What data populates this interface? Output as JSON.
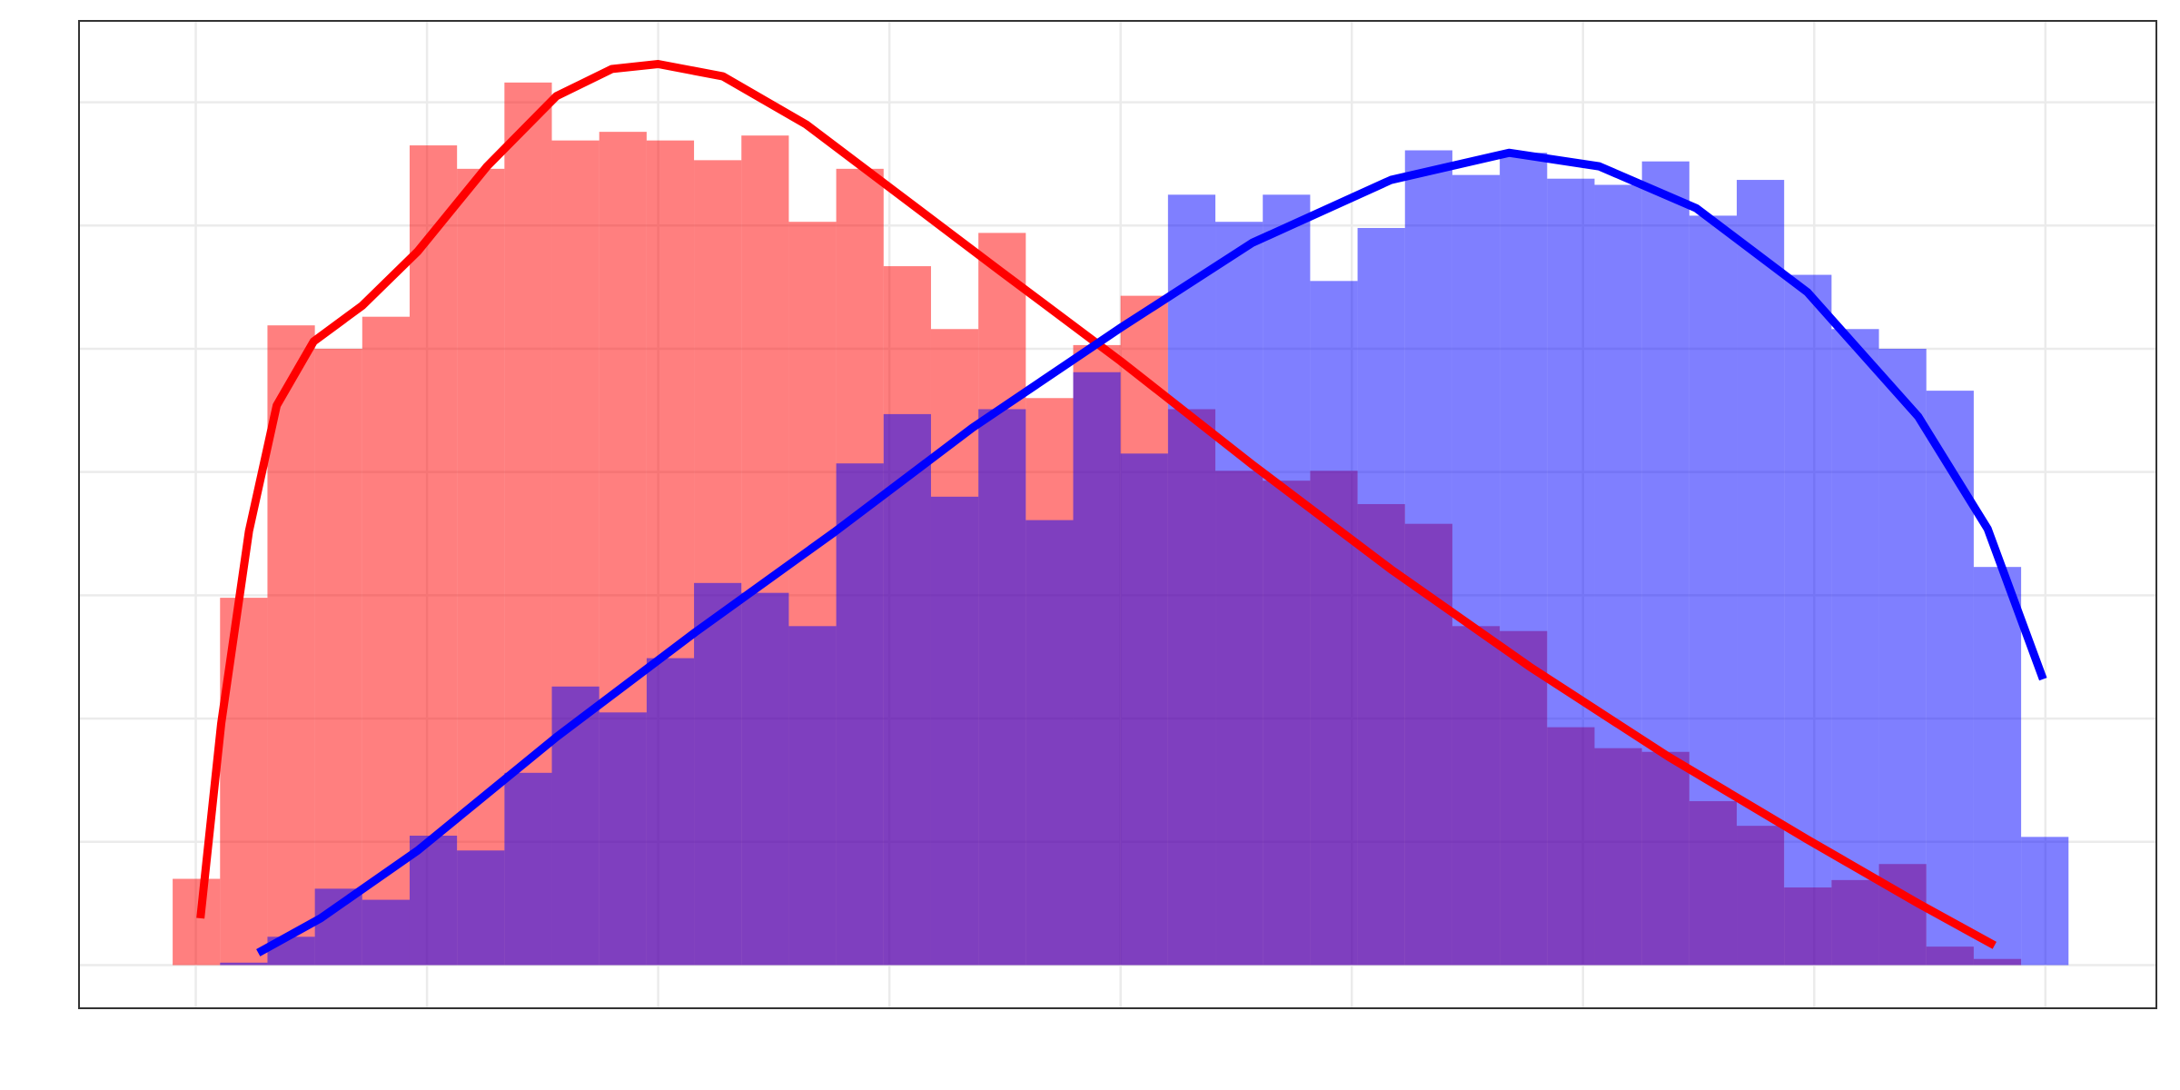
{
  "chart_data": {
    "type": "histogram",
    "bins": [
      -0.1,
      0.105,
      0.31,
      0.515,
      0.72,
      0.925,
      1.13,
      1.335,
      1.54,
      1.745,
      1.95,
      2.155,
      2.36,
      2.565,
      2.77,
      2.975,
      3.18,
      3.385,
      3.59,
      3.795,
      4.0,
      4.205,
      4.41,
      4.615,
      4.82,
      5.025,
      5.23,
      5.435,
      5.64,
      5.845,
      6.05,
      6.255,
      6.46,
      6.665,
      6.87,
      7.075,
      7.28,
      7.485,
      7.69,
      7.895,
      8.1
    ],
    "series": [
      {
        "color": "rgba(255,0,0,0.5)",
        "values": [
          0.7,
          2.98,
          5.19,
          5.0,
          5.26,
          6.65,
          6.46,
          7.16,
          6.69,
          6.76,
          6.69,
          6.53,
          6.73,
          6.03,
          6.46,
          5.67,
          5.16,
          5.94,
          4.6,
          5.03,
          5.43,
          4.51,
          4.01,
          3.93,
          4.01,
          3.74,
          3.58,
          2.75,
          2.71,
          1.93,
          1.76,
          1.73,
          1.33,
          1.13,
          0.63,
          0.69,
          0.82,
          0.15,
          0.05,
          0
        ]
      },
      {
        "color": "rgba(0,0,255,0.5)",
        "values": [
          0,
          0.02,
          0.23,
          0.62,
          0.53,
          1.05,
          0.93,
          1.56,
          2.26,
          2.05,
          2.49,
          3.1,
          3.02,
          2.75,
          4.07,
          4.47,
          3.8,
          4.51,
          3.61,
          4.81,
          4.15,
          6.25,
          6.03,
          6.25,
          5.55,
          5.98,
          6.61,
          6.41,
          6.59,
          6.38,
          6.33,
          6.52,
          6.08,
          6.37,
          5.6,
          5.16,
          5.0,
          4.66,
          3.23,
          1.04
        ]
      }
    ],
    "lines": [
      {
        "color": "#ff0000",
        "x": [
          0.02,
          0.11,
          0.23,
          0.35,
          0.51,
          0.72,
          0.96,
          1.26,
          1.56,
          1.8,
          2.0,
          2.28,
          2.64,
          3.0,
          3.48,
          4.0,
          4.57,
          5.17,
          5.77,
          6.37,
          6.97,
          7.45,
          7.78
        ],
        "values": [
          0.38,
          1.96,
          3.52,
          4.54,
          5.06,
          5.35,
          5.79,
          6.48,
          7.05,
          7.27,
          7.31,
          7.21,
          6.82,
          6.31,
          5.63,
          4.9,
          4.06,
          3.21,
          2.42,
          1.69,
          1.02,
          0.5,
          0.16
        ]
      },
      {
        "color": "#0000ff",
        "x": [
          0.27,
          0.54,
          0.96,
          1.56,
          2.16,
          2.76,
          3.36,
          4.0,
          4.57,
          5.17,
          5.68,
          6.07,
          6.49,
          6.97,
          7.45,
          7.75,
          7.99
        ],
        "values": [
          0.1,
          0.38,
          0.93,
          1.85,
          2.7,
          3.51,
          4.36,
          5.17,
          5.86,
          6.37,
          6.59,
          6.48,
          6.14,
          5.46,
          4.45,
          3.54,
          2.32
        ]
      }
    ],
    "xlim": [
      -0.505,
      8.48
    ],
    "ylim": [
      -0.35,
      7.66
    ],
    "xticks": [
      0,
      1,
      2,
      3,
      4,
      5,
      6,
      7,
      8
    ],
    "yticks": [
      0,
      1,
      2,
      3,
      4,
      5,
      6,
      7
    ],
    "grid": true
  }
}
